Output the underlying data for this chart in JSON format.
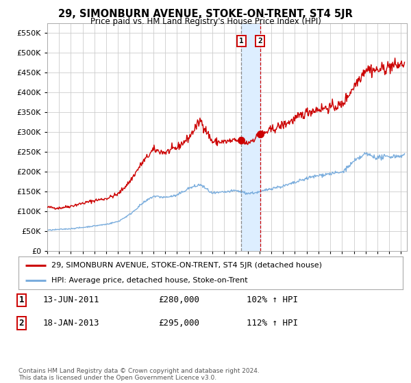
{
  "title": "29, SIMONBURN AVENUE, STOKE-ON-TRENT, ST4 5JR",
  "subtitle": "Price paid vs. HM Land Registry's House Price Index (HPI)",
  "ytick_values": [
    0,
    50000,
    100000,
    150000,
    200000,
    250000,
    300000,
    350000,
    400000,
    450000,
    500000,
    550000
  ],
  "ylim": [
    0,
    575000
  ],
  "xlim_start": 1995.0,
  "xlim_end": 2025.5,
  "sale1_x": 2011.45,
  "sale1_y": 280000,
  "sale1_label": "1",
  "sale2_x": 2013.05,
  "sale2_y": 295000,
  "sale2_label": "2",
  "legend_line1": "29, SIMONBURN AVENUE, STOKE-ON-TRENT, ST4 5JR (detached house)",
  "legend_line2": "HPI: Average price, detached house, Stoke-on-Trent",
  "table_row1": [
    "1",
    "13-JUN-2011",
    "£280,000",
    "102% ↑ HPI"
  ],
  "table_row2": [
    "2",
    "18-JAN-2013",
    "£295,000",
    "112% ↑ HPI"
  ],
  "footer": "Contains HM Land Registry data © Crown copyright and database right 2024.\nThis data is licensed under the Open Government Licence v3.0.",
  "red_color": "#cc0000",
  "blue_color": "#7aaddd",
  "highlight_color": "#ddeeff",
  "background_color": "#ffffff",
  "grid_color": "#cccccc",
  "red_base": {
    "1995": 110000,
    "1996": 108000,
    "1997": 113000,
    "1998": 120000,
    "1999": 127000,
    "2000": 132000,
    "2001": 143000,
    "2002": 175000,
    "2003": 220000,
    "2004": 255000,
    "2005": 248000,
    "2006": 260000,
    "2007": 285000,
    "2008": 330000,
    "2009": 275000,
    "2010": 275000,
    "2011": 278000,
    "2012": 272000,
    "2013": 292000,
    "2014": 305000,
    "2015": 318000,
    "2016": 332000,
    "2017": 350000,
    "2018": 358000,
    "2019": 362000,
    "2020": 368000,
    "2021": 415000,
    "2022": 460000,
    "2023": 455000,
    "2024": 465000,
    "2025": 470000
  },
  "blue_base": {
    "1995": 52000,
    "1996": 54000,
    "1997": 56000,
    "1998": 59000,
    "1999": 63000,
    "2000": 67000,
    "2001": 74000,
    "2002": 92000,
    "2003": 118000,
    "2004": 138000,
    "2005": 135000,
    "2006": 140000,
    "2007": 158000,
    "2008": 167000,
    "2009": 145000,
    "2010": 148000,
    "2011": 152000,
    "2012": 145000,
    "2013": 148000,
    "2014": 158000,
    "2015": 163000,
    "2016": 172000,
    "2017": 183000,
    "2018": 190000,
    "2019": 195000,
    "2020": 198000,
    "2021": 225000,
    "2022": 245000,
    "2023": 235000,
    "2024": 238000,
    "2025": 240000
  }
}
